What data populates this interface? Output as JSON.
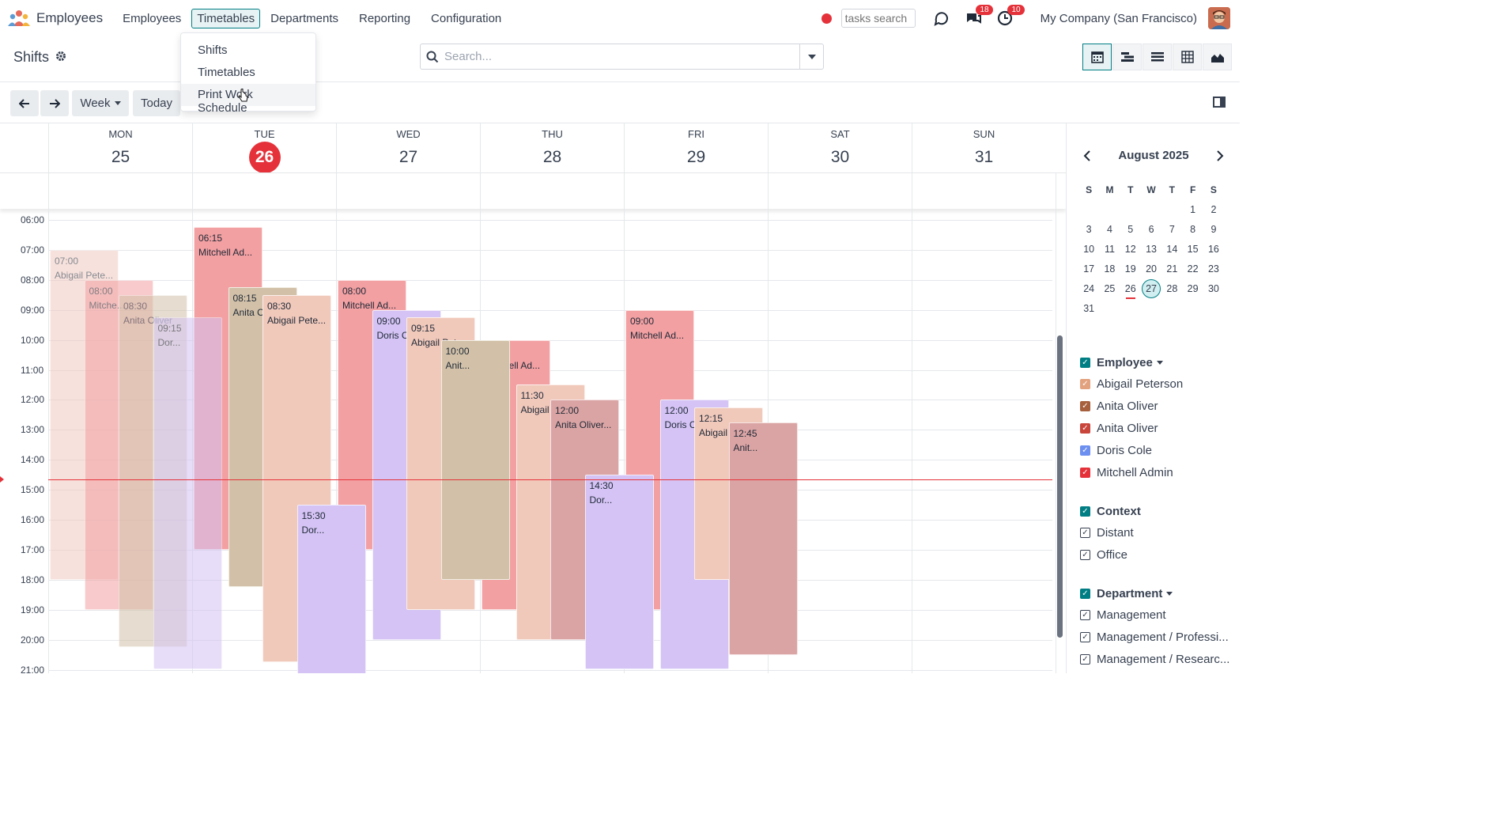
{
  "app": {
    "name": "Employees"
  },
  "menu": [
    {
      "label": "Employees",
      "active": false
    },
    {
      "label": "Timetables",
      "active": true
    },
    {
      "label": "Departments",
      "active": false
    },
    {
      "label": "Reporting",
      "active": false
    },
    {
      "label": "Configuration",
      "active": false
    }
  ],
  "dropdown": {
    "items": [
      "Shifts",
      "Timetables",
      "Print Work Schedule"
    ],
    "hovered": "Print Work Schedule"
  },
  "navbar": {
    "tasks_search": "tasks search",
    "messages_badge": "18",
    "activities_badge": "10",
    "company": "My Company (San Francisco)"
  },
  "page": {
    "title": "Shifts"
  },
  "search": {
    "placeholder": "Search..."
  },
  "toolbar": {
    "scale": "Week",
    "today": "Today"
  },
  "calendar": {
    "days": [
      {
        "name": "MON",
        "num": "25"
      },
      {
        "name": "TUE",
        "num": "26",
        "today": true
      },
      {
        "name": "WED",
        "num": "27"
      },
      {
        "name": "THU",
        "num": "28"
      },
      {
        "name": "FRI",
        "num": "29"
      },
      {
        "name": "SAT",
        "num": "30"
      },
      {
        "name": "SUN",
        "num": "31"
      }
    ],
    "hours": [
      "06:00",
      "07:00",
      "08:00",
      "09:00",
      "10:00",
      "11:00",
      "12:00",
      "13:00",
      "14:00",
      "15:00",
      "16:00",
      "17:00",
      "18:00",
      "19:00",
      "20:00",
      "21:00"
    ],
    "now": "14:40",
    "events": [
      {
        "day": 0,
        "start": "07:00",
        "end": "18:00",
        "time": "07:00",
        "name": "Abigail Pete...",
        "color": "#f1c9c0",
        "faded": true
      },
      {
        "day": 0,
        "start": "08:00",
        "end": "19:00",
        "time": "08:00",
        "name": "Mitche...",
        "color": "#f3a0a2",
        "faded": true
      },
      {
        "day": 0,
        "start": "08:30",
        "end": "20:15",
        "time": "08:30",
        "name": "Anita Oliver",
        "color": "#d2c1a8",
        "faded": true
      },
      {
        "day": 0,
        "start": "09:15",
        "end": "21:00",
        "time": "09:15",
        "name": "Dor...",
        "color": "#d4c3f4",
        "faded": true
      },
      {
        "day": 1,
        "start": "06:15",
        "end": "17:00",
        "time": "06:15",
        "name": "Mitchell Ad...",
        "color": "#f3a0a2"
      },
      {
        "day": 1,
        "start": "08:15",
        "end": "18:15",
        "time": "08:15",
        "name": "Anita Oliver",
        "color": "#d2c1a8"
      },
      {
        "day": 1,
        "start": "08:30",
        "end": "20:45",
        "time": "08:30",
        "name": "Abigail Pete...",
        "color": "#f1c9bb"
      },
      {
        "day": 1,
        "start": "15:30",
        "end": "21:30",
        "time": "15:30",
        "name": "Dor...",
        "color": "#d4c3f4"
      },
      {
        "day": 2,
        "start": "08:00",
        "end": "17:00",
        "time": "08:00",
        "name": "Mitchell Ad...",
        "color": "#f3a0a2"
      },
      {
        "day": 2,
        "start": "09:00",
        "end": "20:00",
        "time": "09:00",
        "name": "Doris Cole",
        "color": "#d4c3f4"
      },
      {
        "day": 2,
        "start": "09:15",
        "end": "19:00",
        "time": "09:15",
        "name": "Abigail Peterson",
        "color": "#f1c9bb"
      },
      {
        "day": 2,
        "start": "10:00",
        "end": "18:00",
        "time": "10:00",
        "name": "Anit...",
        "color": "#d2c1a8"
      },
      {
        "day": 3,
        "start": "10:00",
        "end": "19:00",
        "time": "10:00",
        "name": "Mitchell Ad...",
        "color": "#f3a0a2"
      },
      {
        "day": 3,
        "start": "11:30",
        "end": "20:00",
        "time": "11:30",
        "name": "Abigail Peterson",
        "color": "#f1c9bb"
      },
      {
        "day": 3,
        "start": "12:00",
        "end": "20:00",
        "time": "12:00",
        "name": "Anita Oliver...",
        "color": "#dba4a4"
      },
      {
        "day": 3,
        "start": "14:30",
        "end": "21:00",
        "time": "14:30",
        "name": "Dor...",
        "color": "#d4c3f4"
      },
      {
        "day": 4,
        "start": "09:00",
        "end": "19:00",
        "time": "09:00",
        "name": "Mitchell Ad...",
        "color": "#f3a0a2"
      },
      {
        "day": 4,
        "start": "12:00",
        "end": "21:00",
        "time": "12:00",
        "name": "Doris Cole",
        "color": "#d4c3f4"
      },
      {
        "day": 4,
        "start": "12:15",
        "end": "18:00",
        "time": "12:15",
        "name": "Abigail Peterson",
        "color": "#f1c9bb"
      },
      {
        "day": 4,
        "start": "12:45",
        "end": "20:30",
        "time": "12:45",
        "name": "Anit...",
        "color": "#dba4a4"
      }
    ]
  },
  "mini_calendar": {
    "month": "August 2025",
    "dow": [
      "S",
      "M",
      "T",
      "W",
      "T",
      "F",
      "S"
    ],
    "weeks": [
      [
        "",
        "",
        "",
        "",
        "",
        "1",
        "2"
      ],
      [
        "3",
        "4",
        "5",
        "6",
        "7",
        "8",
        "9"
      ],
      [
        "10",
        "11",
        "12",
        "13",
        "14",
        "15",
        "16"
      ],
      [
        "17",
        "18",
        "19",
        "20",
        "21",
        "22",
        "23"
      ],
      [
        "24",
        "25",
        "26",
        "27",
        "28",
        "29",
        "30"
      ],
      [
        "31",
        "",
        "",
        "",
        "",
        "",
        ""
      ]
    ],
    "today": "26",
    "selected": "27"
  },
  "filters": {
    "employee": {
      "label": "Employee",
      "items": [
        {
          "label": "Abigail Peterson",
          "color": "#e3a27f"
        },
        {
          "label": "Anita Oliver",
          "color": "#a6603d"
        },
        {
          "label": "Anita Oliver",
          "color": "#c9463d"
        },
        {
          "label": "Doris Cole",
          "color": "#6d8ff0"
        },
        {
          "label": "Mitchell Admin",
          "color": "#e5323a"
        }
      ]
    },
    "context": {
      "label": "Context",
      "items": [
        "Distant",
        "Office"
      ]
    },
    "department": {
      "label": "Department",
      "items": [
        "Management",
        "Management / Professi...",
        "Management / Researc..."
      ]
    }
  }
}
